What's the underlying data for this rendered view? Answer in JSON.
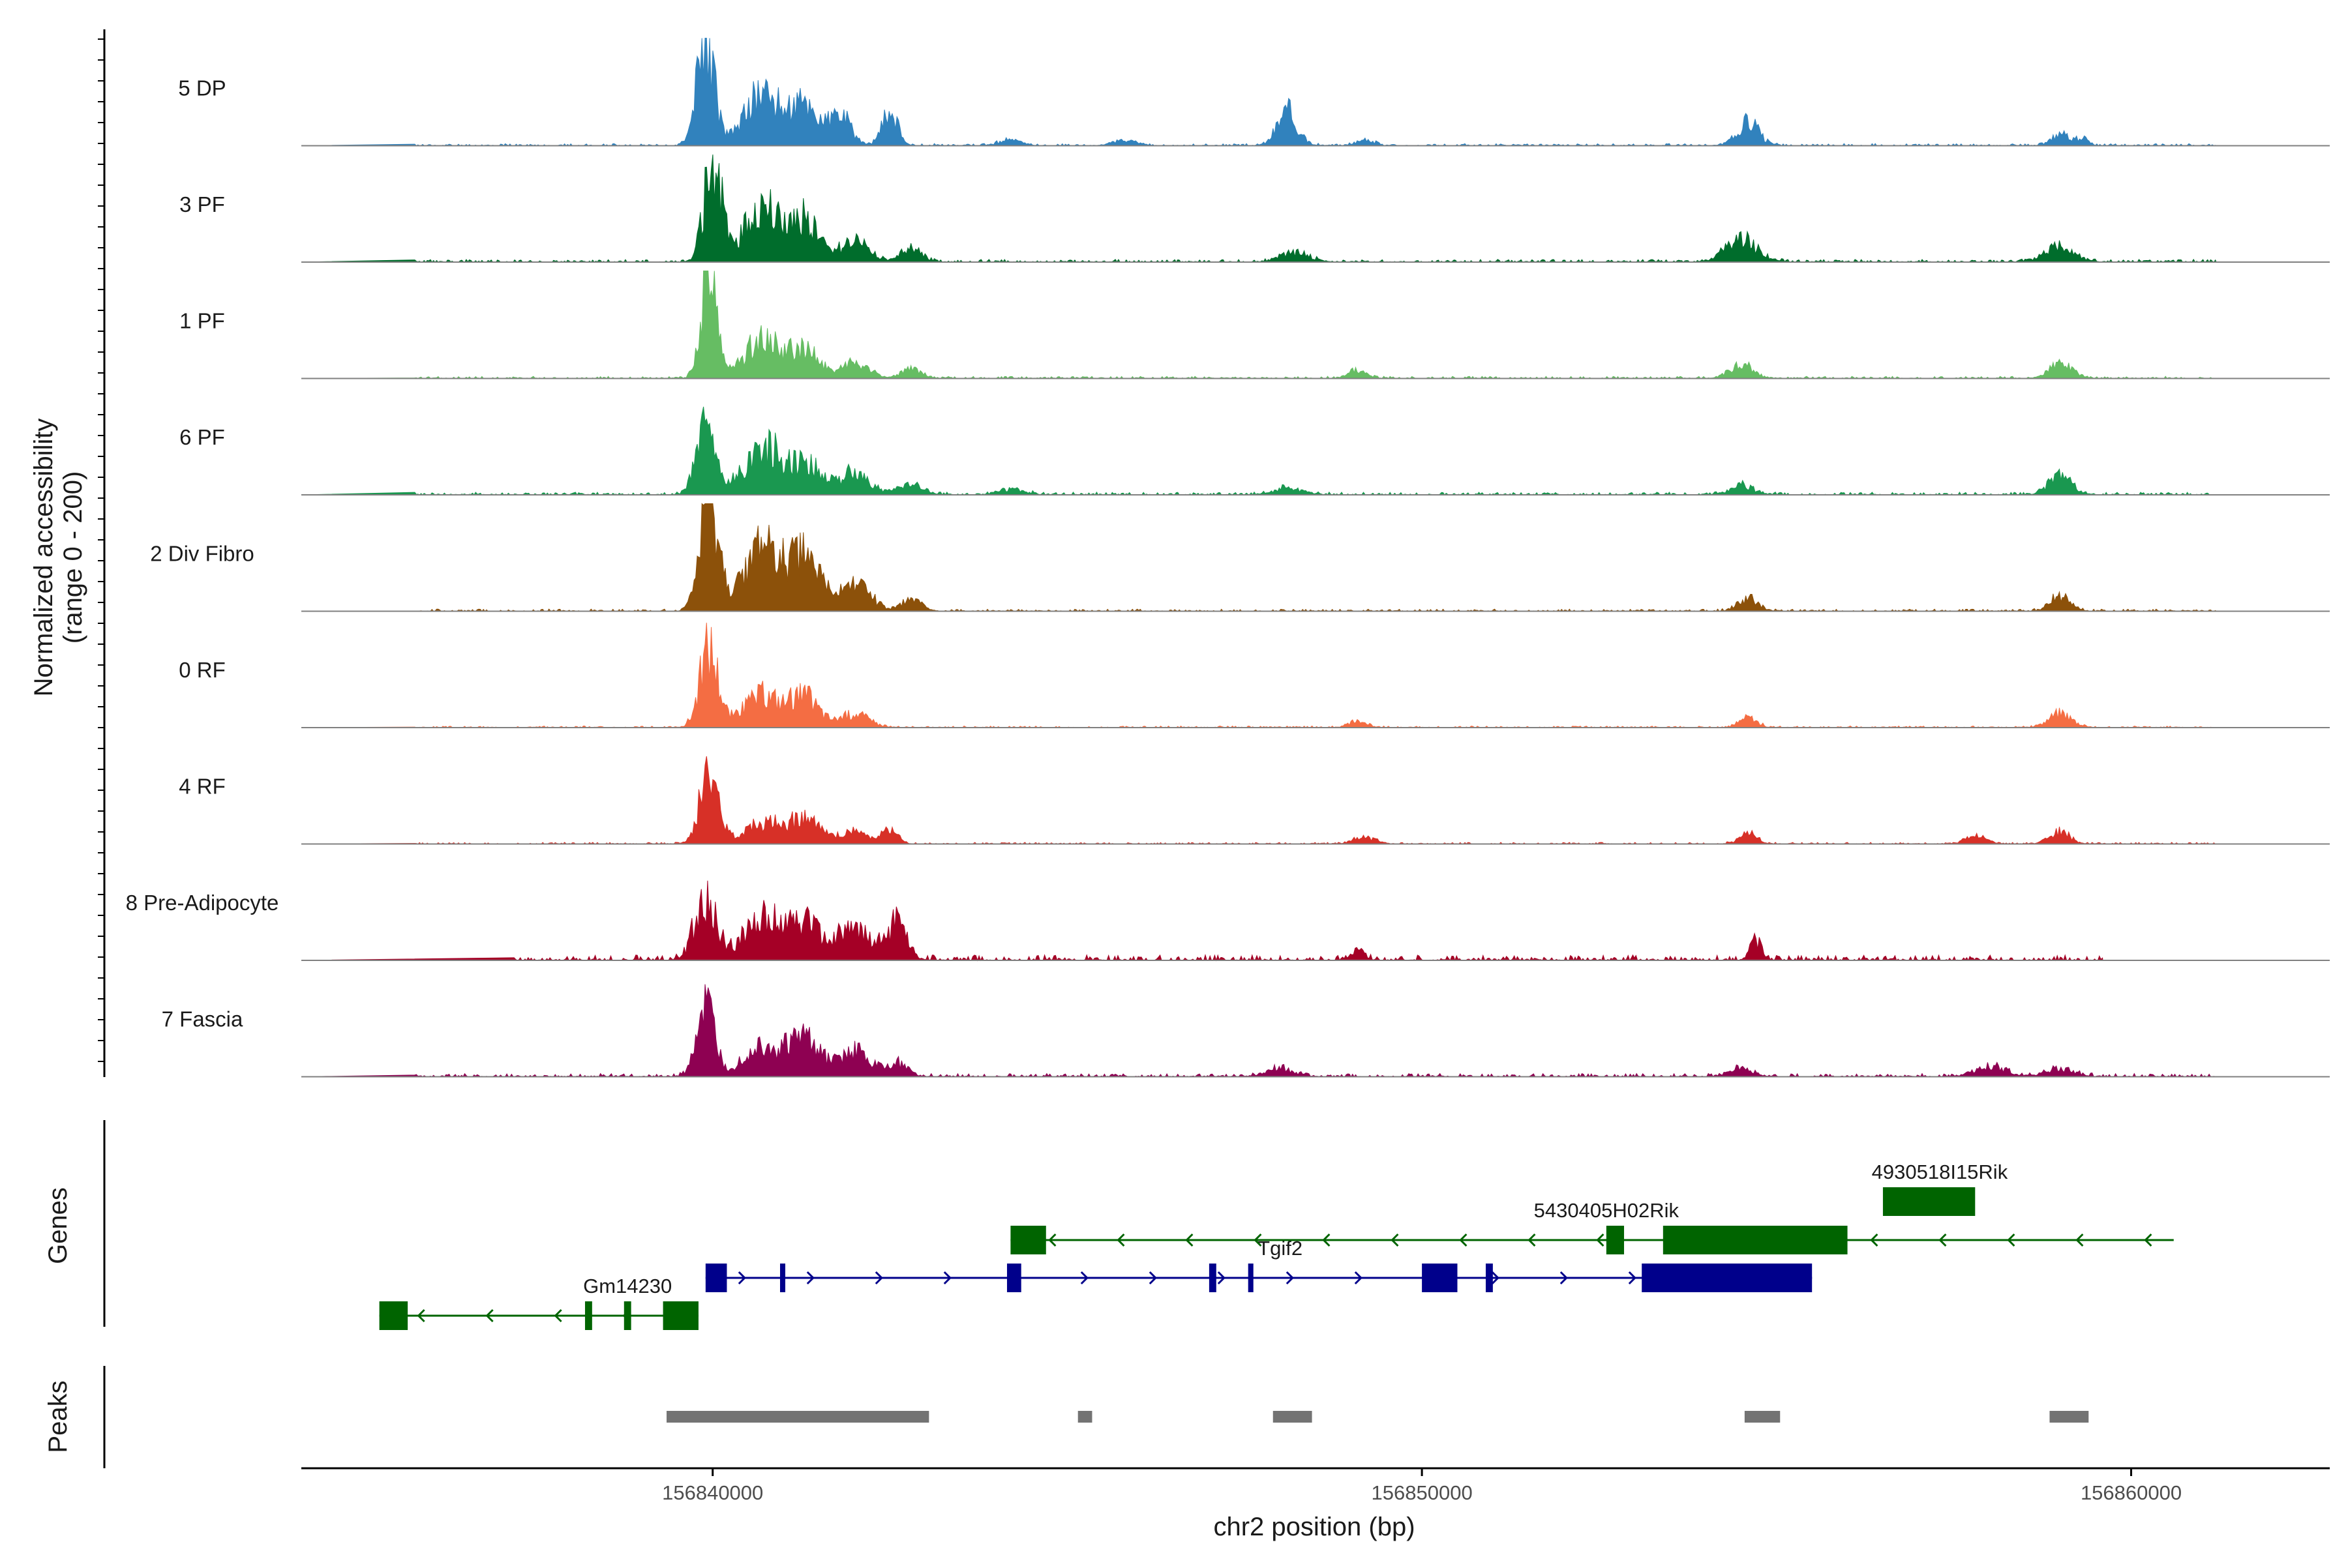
{
  "chart_data": {
    "type": "area",
    "title": "",
    "ylabel": "Normalized accessibility",
    "ylabel_range": "(range 0 - 200)",
    "y_range": [
      0,
      200
    ],
    "xlabel": "chr2 position (bp)",
    "xlim": [
      156834200,
      156862800
    ],
    "xticks": [
      156840000,
      156850000,
      156860000
    ],
    "xtick_labels": [
      "156840000",
      "156850000",
      "156860000"
    ],
    "tracks": [
      {
        "name": "5 DP",
        "color": "#3182bd",
        "peaks": [
          [
            156839900,
            200,
            120
          ],
          [
            156840700,
            95,
            250
          ],
          [
            156841300,
            70,
            200
          ],
          [
            156841800,
            52,
            150
          ],
          [
            156842500,
            60,
            110
          ],
          [
            156844200,
            10,
            150
          ],
          [
            156845800,
            10,
            150
          ],
          [
            156848100,
            64,
            140
          ],
          [
            156849200,
            10,
            120
          ],
          [
            156854600,
            43,
            150
          ],
          [
            156859000,
            20,
            120
          ],
          [
            156859300,
            14,
            80
          ]
        ],
        "noise": 4,
        "span": [
          156835800,
          156861200
        ],
        "seed": 11
      },
      {
        "name": "3 PF",
        "color": "#006d2c",
        "peaks": [
          [
            156840000,
            190,
            120
          ],
          [
            156840700,
            100,
            260
          ],
          [
            156841300,
            75,
            200
          ],
          [
            156842000,
            40,
            200
          ],
          [
            156842800,
            24,
            140
          ],
          [
            156848200,
            18,
            200
          ],
          [
            156854500,
            42,
            220
          ],
          [
            156859000,
            30,
            200
          ]
        ],
        "noise": 5,
        "span": [
          156835800,
          156861200
        ],
        "seed": 23
      },
      {
        "name": "1 PF",
        "color": "#66bd63",
        "peaks": [
          [
            156839950,
            195,
            110
          ],
          [
            156840700,
            70,
            260
          ],
          [
            156841300,
            48,
            220
          ],
          [
            156842000,
            26,
            200
          ],
          [
            156842800,
            18,
            140
          ],
          [
            156849100,
            14,
            120
          ],
          [
            156854500,
            26,
            160
          ],
          [
            156859000,
            26,
            160
          ]
        ],
        "noise": 4,
        "span": [
          156835800,
          156861200
        ],
        "seed": 37
      },
      {
        "name": "6 PF",
        "color": "#1a9850",
        "peaks": [
          [
            156839900,
            125,
            130
          ],
          [
            156840700,
            85,
            260
          ],
          [
            156841300,
            55,
            240
          ],
          [
            156842000,
            38,
            220
          ],
          [
            156842800,
            22,
            150
          ],
          [
            156844200,
            10,
            180
          ],
          [
            156848100,
            12,
            200
          ],
          [
            156854500,
            18,
            160
          ],
          [
            156859000,
            36,
            160
          ]
        ],
        "noise": 5,
        "span": [
          156835800,
          156861200
        ],
        "seed": 41
      },
      {
        "name": "2 Div Fibro",
        "color": "#8c510a",
        "peaks": [
          [
            156839950,
            195,
            130
          ],
          [
            156840700,
            120,
            260
          ],
          [
            156841300,
            95,
            220
          ],
          [
            156842000,
            50,
            220
          ],
          [
            156842800,
            20,
            140
          ],
          [
            156854600,
            24,
            140
          ],
          [
            156859000,
            26,
            140
          ]
        ],
        "noise": 4,
        "span": [
          156835800,
          156861200
        ],
        "seed": 53
      },
      {
        "name": "0 RF",
        "color": "#f46d43",
        "peaks": [
          [
            156839950,
            150,
            130
          ],
          [
            156840700,
            60,
            260
          ],
          [
            156841300,
            55,
            200
          ],
          [
            156842000,
            26,
            200
          ],
          [
            156849100,
            12,
            120
          ],
          [
            156854600,
            18,
            120
          ],
          [
            156859000,
            26,
            160
          ]
        ],
        "noise": 3,
        "span": [
          156835800,
          156861200
        ],
        "seed": 67
      },
      {
        "name": "4 RF",
        "color": "#d73027",
        "peaks": [
          [
            156839950,
            130,
            130
          ],
          [
            156840700,
            40,
            260
          ],
          [
            156841300,
            48,
            200
          ],
          [
            156842000,
            24,
            200
          ],
          [
            156842500,
            28,
            100
          ],
          [
            156849200,
            12,
            150
          ],
          [
            156854600,
            20,
            120
          ],
          [
            156857800,
            14,
            140
          ],
          [
            156859000,
            22,
            140
          ]
        ],
        "noise": 3,
        "span": [
          156835800,
          156861200
        ],
        "seed": 79
      },
      {
        "name": "8 Pre-Adipocyte",
        "color": "#a50026",
        "peaks": [
          [
            156839900,
            110,
            150
          ],
          [
            156840700,
            75,
            260
          ],
          [
            156841300,
            70,
            220
          ],
          [
            156842000,
            60,
            220
          ],
          [
            156842600,
            65,
            140
          ],
          [
            156849100,
            14,
            100
          ],
          [
            156854700,
            40,
            80
          ]
        ],
        "noise": 10,
        "span": [
          156837200,
          156859600
        ],
        "seed": 97
      },
      {
        "name": "7 Fascia",
        "color": "#8e0152",
        "peaks": [
          [
            156839900,
            120,
            130
          ],
          [
            156840700,
            55,
            260
          ],
          [
            156841300,
            65,
            220
          ],
          [
            156842000,
            45,
            220
          ],
          [
            156842600,
            25,
            140
          ],
          [
            156848000,
            14,
            200
          ],
          [
            156854500,
            14,
            160
          ],
          [
            156858000,
            20,
            200
          ],
          [
            156859000,
            14,
            200
          ]
        ],
        "noise": 6,
        "span": [
          156835800,
          156861200
        ],
        "seed": 103
      }
    ],
    "genes": [
      {
        "name": "Gm14230",
        "strand": "-",
        "color": "#006400",
        "row": 2,
        "start": 156835300,
        "end": 156839800,
        "exons": [
          [
            156835300,
            156835700
          ],
          [
            156838200,
            156838300
          ],
          [
            156838750,
            156838850
          ],
          [
            156839300,
            156839800
          ]
        ],
        "label_x": 156838800
      },
      {
        "name": "Tgif2",
        "strand": "+",
        "color": "#00008b",
        "row": 1,
        "start": 156839900,
        "end": 156855500,
        "exons": [
          [
            156839900,
            156840200
          ],
          [
            156840950,
            156841000
          ],
          [
            156844150,
            156844350
          ],
          [
            156847000,
            156847100
          ],
          [
            156847550,
            156847600
          ],
          [
            156850000,
            156850500
          ],
          [
            156850900,
            156851000
          ],
          [
            156853100,
            156855500
          ]
        ],
        "label_x": 156848000
      },
      {
        "name": "5430405H02Rik",
        "strand": "-",
        "color": "#006400",
        "row": 0,
        "start": 156844200,
        "end": 156860600,
        "exons": [
          [
            156844200,
            156844700
          ],
          [
            156852600,
            156852850
          ],
          [
            156853400,
            156856000
          ]
        ],
        "label_x": 156852600
      },
      {
        "name": "4930518I15Rik",
        "strand": "",
        "color": "#006400",
        "row": -1,
        "start": 156856500,
        "end": 156857800,
        "exons": [
          [
            156856500,
            156857800
          ]
        ],
        "label_x": 156857300
      }
    ],
    "peaks_track": [
      [
        156839350,
        156843050
      ],
      [
        156845150,
        156845350
      ],
      [
        156847900,
        156848450
      ],
      [
        156854550,
        156855050
      ],
      [
        156858850,
        156859400
      ]
    ]
  },
  "panels": {
    "genes_label": "Genes",
    "peaks_label": "Peaks"
  },
  "colors": {
    "gene_plus": "#00008b",
    "gene_minus": "#006400",
    "peak_bar": "#737373",
    "axis": "#000000",
    "baseline": "#808080"
  }
}
